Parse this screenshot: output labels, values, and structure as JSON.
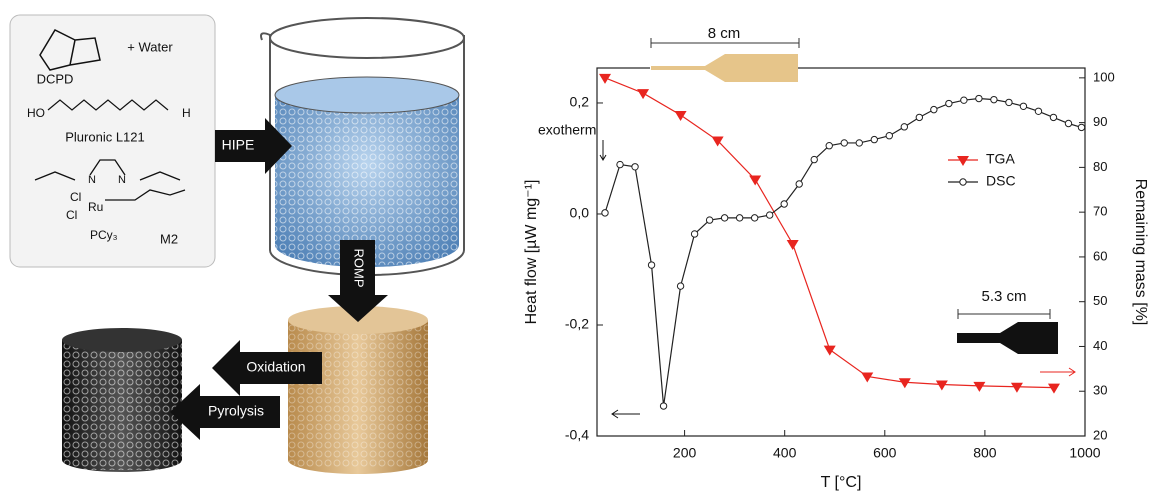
{
  "scheme": {
    "monomer": "DCPD",
    "water": "+ Water",
    "surfactant": "Pluronic L121",
    "catalyst": "M2",
    "steps": [
      "HIPE",
      "ROMP",
      "Oxidation",
      "Pyrolysis"
    ],
    "atoms": [
      "HO",
      "H",
      "Cl",
      "Cl",
      "Ru",
      "PCy₃",
      "N",
      "N"
    ]
  },
  "chart_data": {
    "type": "line",
    "x_label": "T [°C]",
    "y_label": "Heat flow [µW mg⁻¹]",
    "y2_label": "Remaining mass [%]",
    "annotations": [
      "exotherm",
      "8 cm",
      "5.3 cm"
    ],
    "xlim": [
      25,
      1000
    ],
    "xticks": [
      200,
      400,
      600,
      800,
      1000
    ],
    "ylim": [
      -0.4,
      0.263
    ],
    "yticks": [
      {
        "value": -0.4,
        "label": "-0,4"
      },
      {
        "value": -0.2,
        "label": "-0,2"
      },
      {
        "value": 0,
        "label": "0,0"
      },
      {
        "value": 0.2,
        "label": "0,2"
      }
    ],
    "y2lim": [
      20,
      102.2
    ],
    "y2ticks": [
      20,
      30,
      40,
      50,
      60,
      70,
      80,
      90,
      100
    ],
    "legend": "upper right",
    "series": [
      {
        "name": "TGA",
        "color": "#e8251f",
        "marker": "triangle",
        "axis": "y2",
        "x": [
          41,
          117,
          192,
          266,
          341,
          416,
          490,
          565,
          640,
          714,
          789,
          864,
          938
        ],
        "values": [
          100,
          96.6,
          91.7,
          86,
          77.3,
          62.9,
          39.3,
          33.3,
          32.0,
          31.5,
          31.2,
          31.0,
          30.8
        ]
      },
      {
        "name": "DSC",
        "color": "#222222",
        "marker": "circle",
        "x": [
          41,
          71,
          101,
          134,
          158,
          192,
          220,
          250,
          280,
          310,
          340,
          370,
          399,
          429,
          459,
          489,
          519,
          549,
          579,
          609,
          639,
          669,
          698,
          728,
          758,
          788,
          818,
          848,
          877,
          907,
          937,
          967,
          993
        ],
        "values": [
          0.002,
          0.089,
          0.085,
          -0.092,
          -0.346,
          -0.13,
          -0.036,
          -0.011,
          -0.007,
          -0.007,
          -0.007,
          -0.002,
          0.018,
          0.054,
          0.098,
          0.123,
          0.128,
          0.128,
          0.134,
          0.141,
          0.157,
          0.174,
          0.188,
          0.199,
          0.205,
          0.208,
          0.206,
          0.201,
          0.194,
          0.185,
          0.174,
          0.163,
          0.156
        ]
      }
    ]
  }
}
